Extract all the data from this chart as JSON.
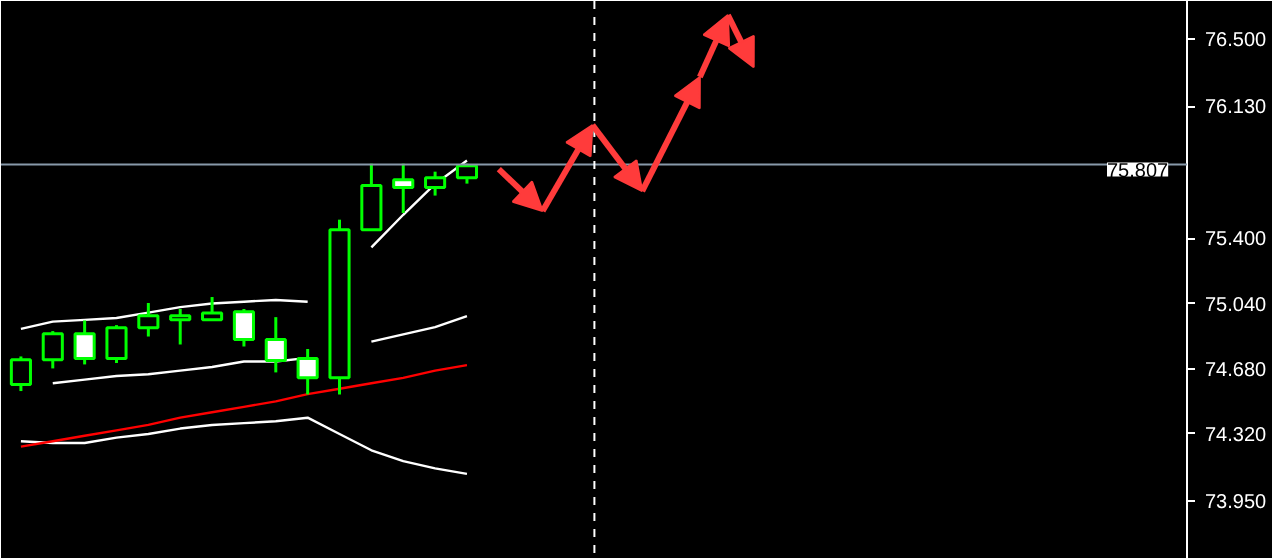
{
  "chart_data": {
    "type": "candlestick",
    "categories": [
      null,
      null,
      null,
      null,
      null,
      null,
      null,
      null,
      null,
      null,
      null,
      null,
      null,
      null,
      null,
      null,
      null,
      null,
      null,
      null,
      null,
      null,
      null,
      null,
      null,
      null,
      null,
      null,
      null,
      null,
      null,
      null,
      null,
      null,
      null,
      null,
      null
    ],
    "ohlc": [
      [
        74.593,
        74.748,
        74.557,
        74.73
      ],
      [
        74.73,
        74.888,
        74.682,
        74.874
      ],
      [
        74.874,
        74.947,
        74.704,
        74.737
      ],
      [
        74.737,
        74.921,
        74.712,
        74.907
      ],
      [
        74.907,
        75.043,
        74.858,
        74.973
      ],
      [
        74.951,
        75.01,
        74.814,
        74.973
      ],
      [
        74.951,
        75.076,
        74.951,
        74.988
      ],
      [
        74.995,
        75.01,
        74.803,
        74.841
      ],
      [
        74.841,
        74.965,
        74.66,
        74.726
      ],
      [
        74.737,
        74.789,
        74.538,
        74.631
      ],
      [
        74.631,
        75.503,
        74.538,
        75.448
      ],
      [
        75.448,
        75.812,
        75.448,
        75.691
      ],
      [
        75.724,
        75.812,
        75.54,
        75.68
      ],
      [
        75.68,
        75.768,
        75.636,
        75.735
      ],
      [
        75.735,
        75.812,
        75.702,
        75.801
      ],
      null,
      null,
      null,
      null,
      null,
      null,
      null,
      null,
      null,
      null,
      null,
      null,
      null,
      null,
      null,
      null,
      null,
      null,
      null,
      null,
      null,
      null
    ],
    "color": "#00ff00",
    "colors": [
      "#000000",
      "#000000",
      "#ffffff",
      "#000000",
      "#000000",
      "#000000",
      "#000000",
      "#ffffff",
      "#ffffff",
      "#ffffff",
      "#000000",
      "#000000",
      "#ffffff",
      "#000000",
      "#000000",
      null,
      null,
      null,
      null,
      null,
      null,
      null,
      null,
      null,
      null,
      null,
      null,
      null,
      null,
      null,
      null,
      null,
      null,
      null,
      null,
      null,
      null
    ],
    "series": [
      {
        "type": "line",
        "color": "#ffffff",
        "values": [
          74.9,
          74.94,
          74.95,
          74.96,
          74.99,
          75.02,
          75.04,
          75.05,
          75.06,
          75.05,
          null,
          75.35,
          75.53,
          75.7,
          75.83,
          null,
          null,
          null,
          null,
          null,
          null,
          null,
          null,
          null,
          null,
          null,
          null,
          null,
          null,
          null,
          null,
          null,
          null,
          null,
          null,
          null,
          null
        ]
      },
      {
        "type": "line",
        "color": "#ffffff",
        "values": [
          null,
          74.6,
          74.62,
          74.64,
          74.65,
          74.67,
          74.69,
          74.72,
          74.72,
          74.74,
          null,
          74.83,
          74.87,
          74.91,
          74.97,
          null,
          null,
          null,
          null,
          null,
          null,
          null,
          null,
          null,
          null,
          null,
          null,
          null,
          null,
          null,
          null,
          null,
          null,
          null,
          null,
          null,
          null
        ]
      },
      {
        "type": "line",
        "color": "#ffffff",
        "values": [
          74.28,
          74.27,
          74.27,
          74.3,
          74.32,
          74.35,
          74.37,
          74.38,
          74.39,
          74.41,
          74.32,
          74.23,
          74.17,
          74.13,
          74.1,
          null,
          null,
          null,
          null,
          null,
          null,
          null,
          null,
          null,
          null,
          null,
          null,
          null,
          null,
          null,
          null,
          null,
          null,
          null,
          null,
          null,
          null
        ]
      },
      {
        "type": "line",
        "color": "#ff0000",
        "values": [
          74.25,
          74.28,
          74.31,
          74.34,
          74.37,
          74.41,
          74.44,
          74.47,
          74.5,
          74.54,
          74.57,
          74.6,
          74.63,
          74.67,
          74.7,
          null,
          null,
          null,
          null,
          null,
          null,
          null,
          null,
          null,
          null,
          null,
          null,
          null,
          null,
          null,
          null,
          null,
          null,
          null,
          null,
          null,
          null
        ]
      }
    ],
    "ylim": [
      73.63,
      76.71
    ],
    "yticks": [
      {
        "value": 73.95,
        "label": "73.950"
      },
      {
        "value": 74.32,
        "label": "74.320"
      },
      {
        "value": 74.68,
        "label": "74.680"
      },
      {
        "value": 75.04,
        "label": "75.040"
      },
      {
        "value": 75.4,
        "label": "75.400"
      },
      {
        "value": 76.13,
        "label": "76.130"
      },
      {
        "value": 76.5,
        "label": "76.500"
      }
    ],
    "tick_labels": "y",
    "grid": false,
    "ref_lines": [
      {
        "axis": "y",
        "value": 75.807,
        "label": "75.807",
        "color": "#8899aa"
      }
    ]
  }
}
